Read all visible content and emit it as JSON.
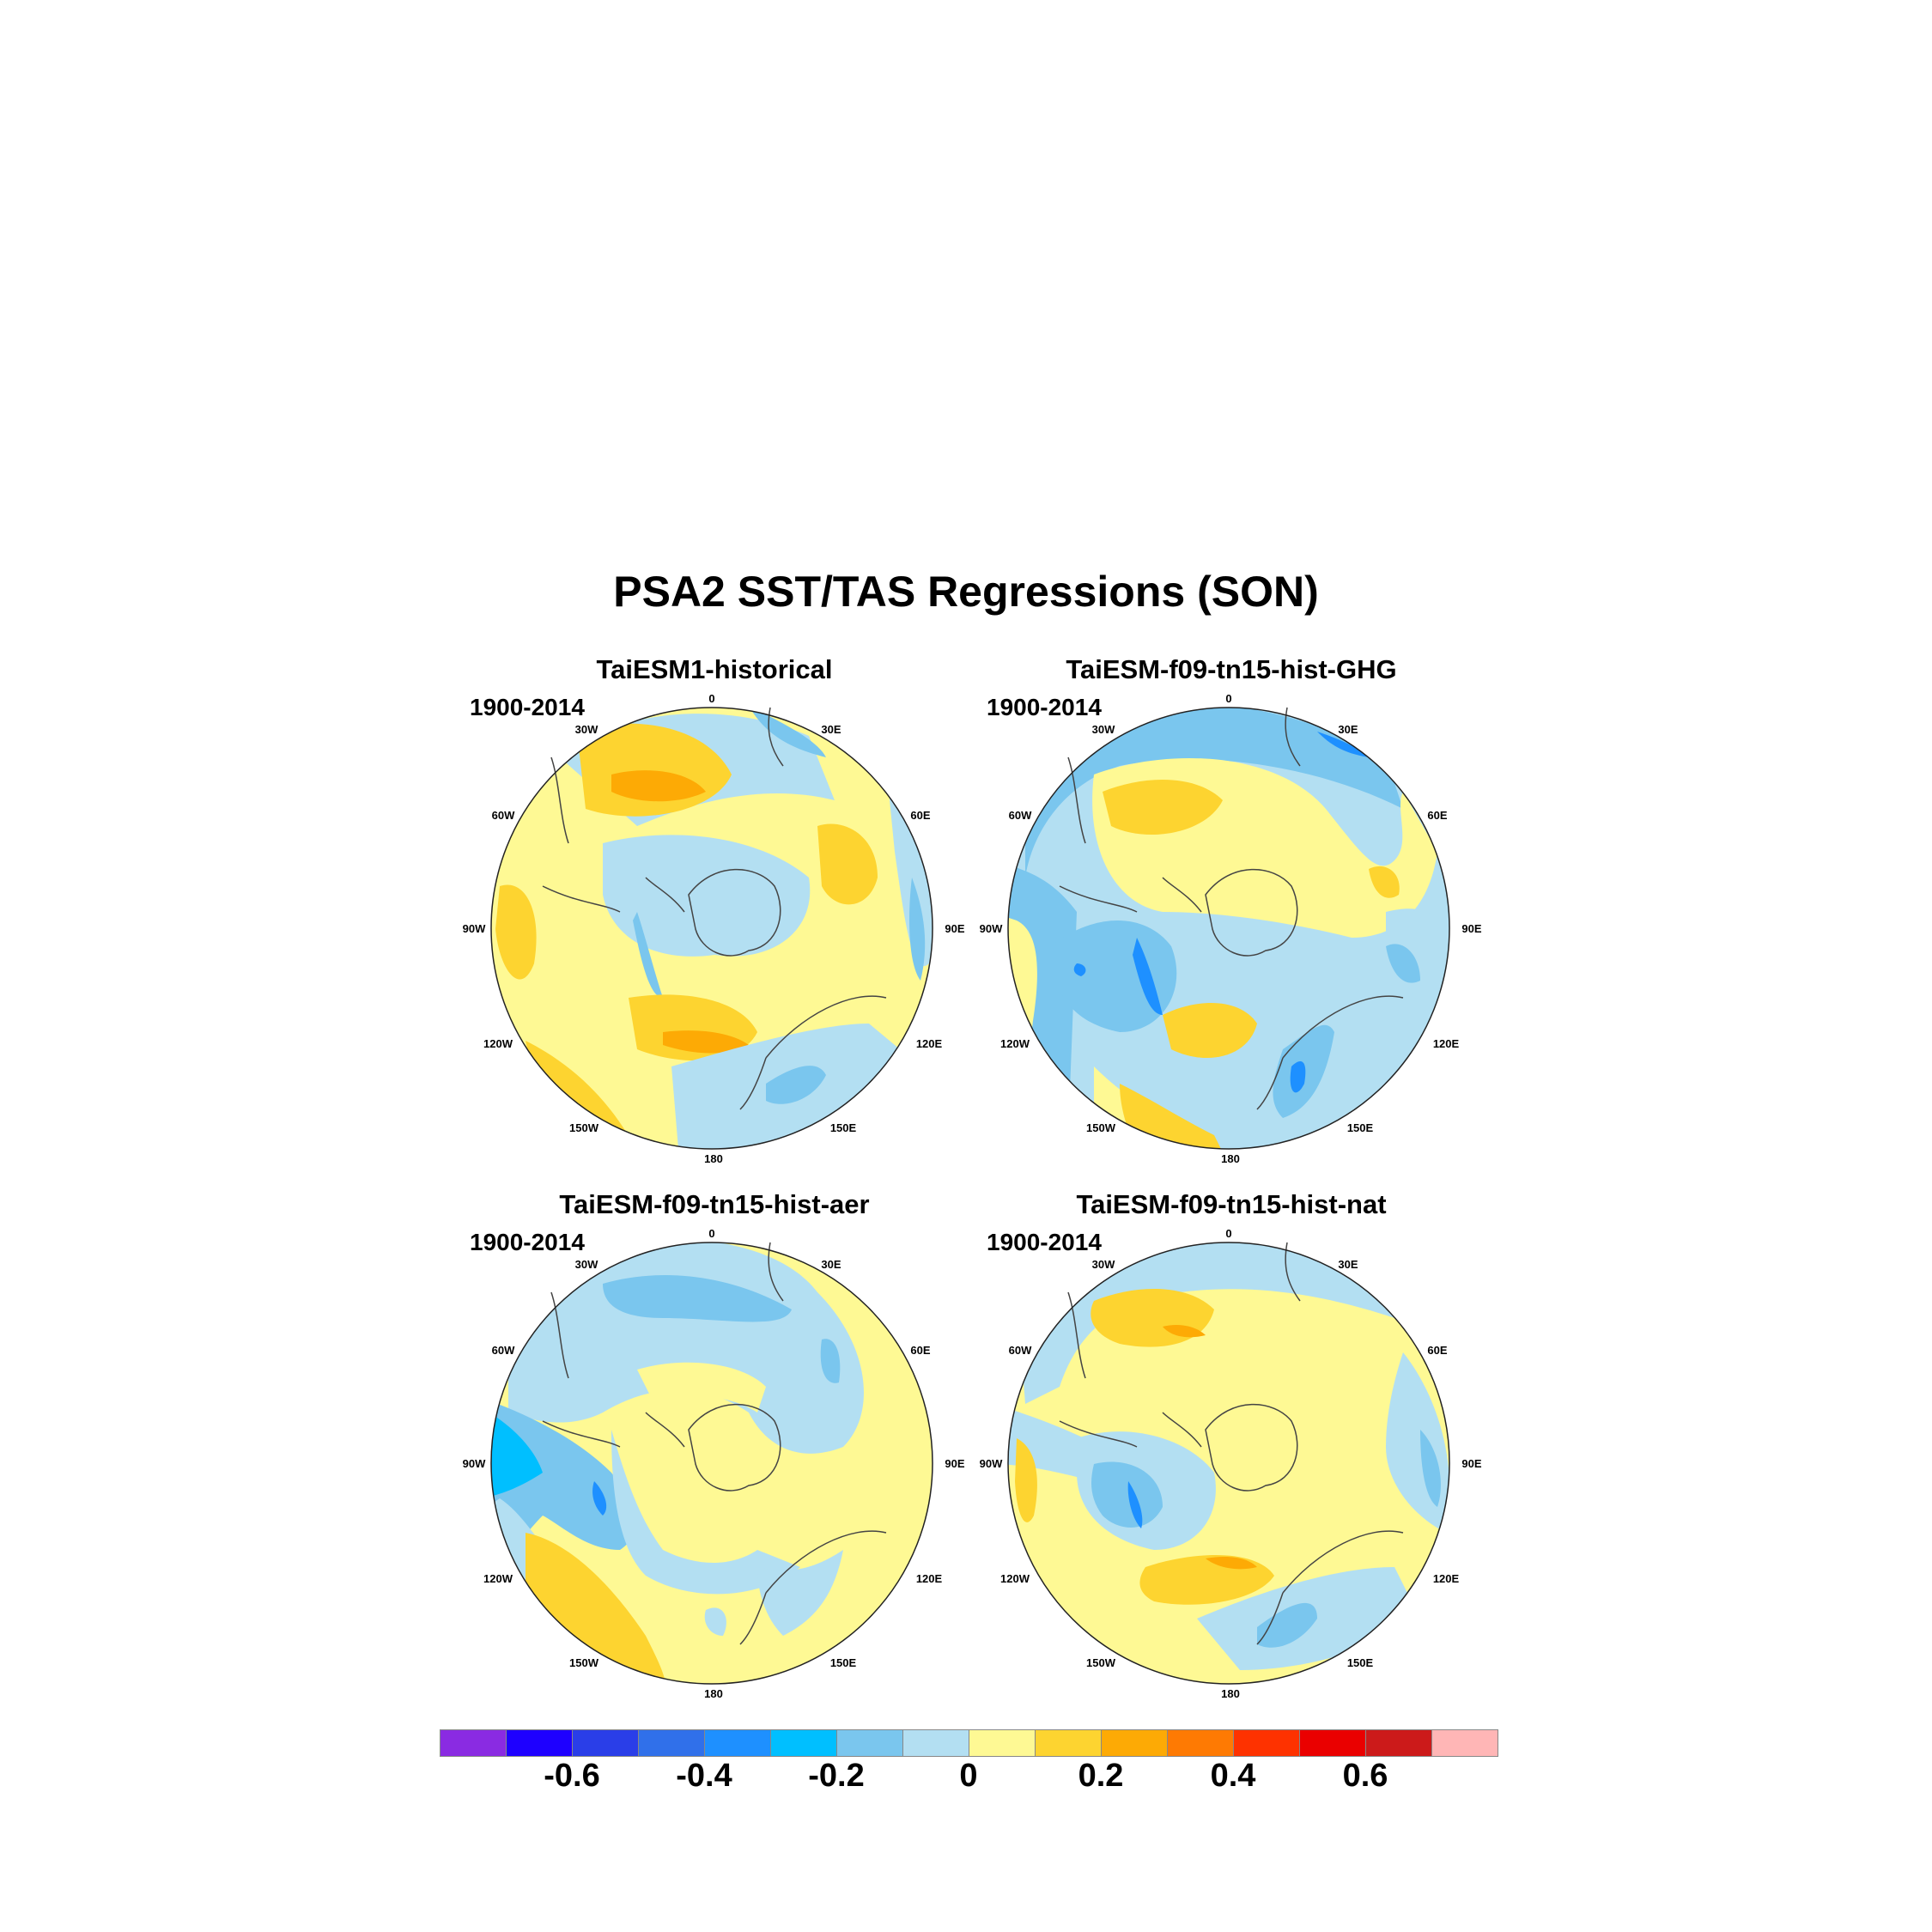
{
  "title": "PSA2 SST/TAS Regressions (SON)",
  "chart_data": {
    "type": "heatmap",
    "projection": "south-polar-stereographic",
    "panels": [
      {
        "title": "TaiESM1-historical",
        "period": "1900-2014"
      },
      {
        "title": "TaiESM-f09-tn15-hist-GHG",
        "period": "1900-2014"
      },
      {
        "title": "TaiESM-f09-tn15-hist-aer",
        "period": "1900-2014"
      },
      {
        "title": "TaiESM-f09-tn15-hist-nat",
        "period": "1900-2014"
      }
    ],
    "longitude_labels": [
      "0",
      "30E",
      "60E",
      "90E",
      "120E",
      "150E",
      "180",
      "150W",
      "120W",
      "90W",
      "60W",
      "30W"
    ],
    "colorbar": {
      "levels": [
        -0.7,
        -0.6,
        -0.5,
        -0.4,
        -0.3,
        -0.2,
        -0.1,
        0,
        0.1,
        0.2,
        0.3,
        0.4,
        0.5,
        0.6,
        0.7
      ],
      "colors": [
        "#8a2be2",
        "#1e00ff",
        "#2a3ee8",
        "#3070ea",
        "#1e90ff",
        "#00bfff",
        "#7ac6ee",
        "#b3dff2",
        "#fef994",
        "#fdd430",
        "#fdaa05",
        "#fe7a03",
        "#fe3200",
        "#ea0000",
        "#cc1a1a",
        "#ffb6b6"
      ],
      "tick_labels": [
        "-0.6",
        "-0.4",
        "-0.2",
        "0",
        "0.2",
        "0.4",
        "0.6"
      ],
      "tick_values": [
        -0.6,
        -0.4,
        -0.2,
        0,
        0.2,
        0.4,
        0.6
      ]
    }
  }
}
